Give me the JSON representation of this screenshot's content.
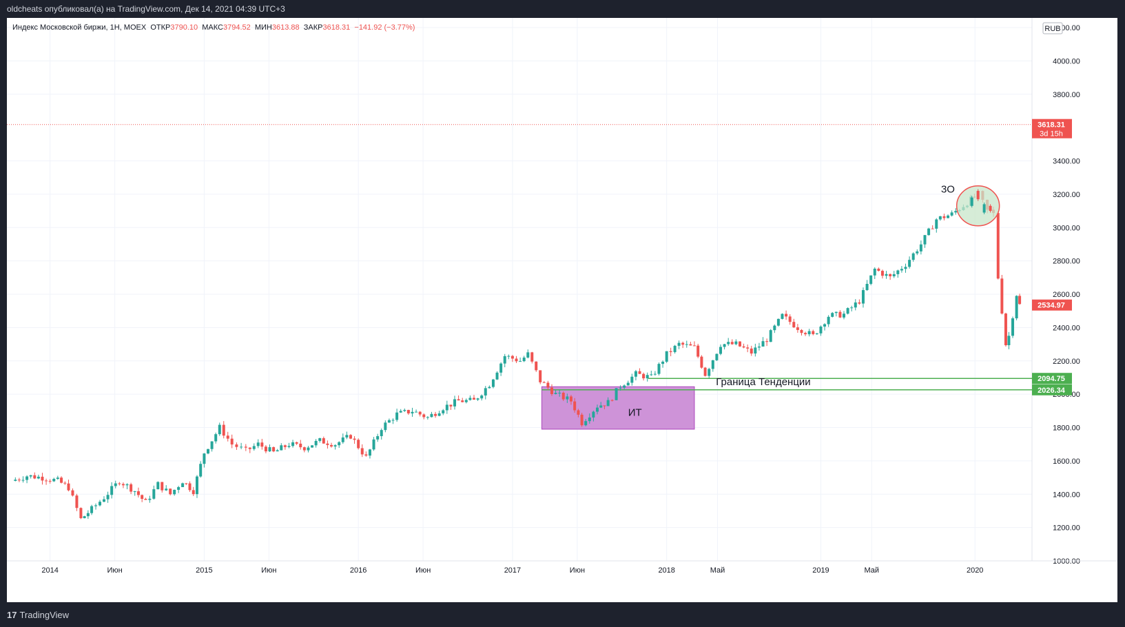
{
  "header": {
    "publisher_line": "oldcheats опубликовал(а) на TradingView.com, Дек 14, 2021 04:39 UTC+3"
  },
  "legend": {
    "symbol": "Индекс Московской биржи, 1Н, MOEX",
    "open_label": "ОТКР",
    "open_value": "3790.10",
    "high_label": "МАКС",
    "high_value": "3794.52",
    "low_label": "МИН",
    "low_value": "3613.88",
    "close_label": "ЗАКР",
    "close_value": "3618.31",
    "change_value": "−141.92 (−3.77%)"
  },
  "currency_badge": "RUB",
  "footer": {
    "logo_glyph": "17",
    "brand": "TradingView"
  },
  "colors": {
    "up": "#26a69a",
    "down": "#ef5350",
    "box_fill": "#ce93d8",
    "level_line": "#4caf50",
    "ellipse_fill": "#c8e6c9",
    "ellipse_stroke": "#ef5350",
    "price_dotted": "#ef5350"
  },
  "chart_data": {
    "type": "candlestick",
    "title": "Индекс Московской биржи, 1Н, MOEX",
    "ylim": [
      1000,
      4200
    ],
    "y_ticks": [
      1000,
      1200,
      1400,
      1600,
      1800,
      2000,
      2200,
      2400,
      2600,
      2800,
      3000,
      3200,
      3400,
      3800,
      4000,
      4200
    ],
    "y_tick_labels": [
      "1000.00",
      "1200.00",
      "1400.00",
      "1600.00",
      "1800.00",
      "2000.00",
      "2200.00",
      "2400.00",
      "2600.00",
      "2800.00",
      "3000.00",
      "3200.00",
      "3400.00",
      "3800.00",
      "4000.00",
      "4200.00"
    ],
    "x_ticks": [
      {
        "t": 2014.0,
        "label": "2014"
      },
      {
        "t": 2014.42,
        "label": "Июн"
      },
      {
        "t": 2015.0,
        "label": "2015"
      },
      {
        "t": 2015.42,
        "label": "Июн"
      },
      {
        "t": 2016.0,
        "label": "2016"
      },
      {
        "t": 2016.42,
        "label": "Июн"
      },
      {
        "t": 2017.0,
        "label": "2017"
      },
      {
        "t": 2017.42,
        "label": "Июн"
      },
      {
        "t": 2018.0,
        "label": "2018"
      },
      {
        "t": 2018.33,
        "label": "Май"
      },
      {
        "t": 2019.0,
        "label": "2019"
      },
      {
        "t": 2019.33,
        "label": "Май"
      },
      {
        "t": 2020.0,
        "label": "2020"
      }
    ],
    "series": [
      {
        "name": "MOEX",
        "points": [
          {
            "t": 2013.75,
            "c": 1480
          },
          {
            "t": 2013.85,
            "c": 1510
          },
          {
            "t": 2013.95,
            "c": 1500
          },
          {
            "t": 2014.05,
            "c": 1480
          },
          {
            "t": 2014.12,
            "c": 1440
          },
          {
            "t": 2014.2,
            "c": 1250
          },
          {
            "t": 2014.27,
            "c": 1310
          },
          {
            "t": 2014.35,
            "c": 1380
          },
          {
            "t": 2014.45,
            "c": 1480
          },
          {
            "t": 2014.55,
            "c": 1420
          },
          {
            "t": 2014.62,
            "c": 1350
          },
          {
            "t": 2014.7,
            "c": 1460
          },
          {
            "t": 2014.78,
            "c": 1400
          },
          {
            "t": 2014.86,
            "c": 1480
          },
          {
            "t": 2014.93,
            "c": 1420
          },
          {
            "t": 2015.0,
            "c": 1650
          },
          {
            "t": 2015.1,
            "c": 1800
          },
          {
            "t": 2015.18,
            "c": 1700
          },
          {
            "t": 2015.27,
            "c": 1660
          },
          {
            "t": 2015.35,
            "c": 1700
          },
          {
            "t": 2015.45,
            "c": 1650
          },
          {
            "t": 2015.55,
            "c": 1700
          },
          {
            "t": 2015.65,
            "c": 1680
          },
          {
            "t": 2015.75,
            "c": 1720
          },
          {
            "t": 2015.85,
            "c": 1700
          },
          {
            "t": 2015.95,
            "c": 1750
          },
          {
            "t": 2016.05,
            "c": 1620
          },
          {
            "t": 2016.15,
            "c": 1800
          },
          {
            "t": 2016.25,
            "c": 1880
          },
          {
            "t": 2016.35,
            "c": 1900
          },
          {
            "t": 2016.45,
            "c": 1860
          },
          {
            "t": 2016.55,
            "c": 1920
          },
          {
            "t": 2016.65,
            "c": 1960
          },
          {
            "t": 2016.75,
            "c": 1960
          },
          {
            "t": 2016.85,
            "c": 2060
          },
          {
            "t": 2016.95,
            "c": 2230
          },
          {
            "t": 2017.05,
            "c": 2200
          },
          {
            "t": 2017.1,
            "c": 2240
          },
          {
            "t": 2017.18,
            "c": 2080
          },
          {
            "t": 2017.28,
            "c": 2000
          },
          {
            "t": 2017.38,
            "c": 1960
          },
          {
            "t": 2017.45,
            "c": 1830
          },
          {
            "t": 2017.55,
            "c": 1930
          },
          {
            "t": 2017.62,
            "c": 1950
          },
          {
            "t": 2017.7,
            "c": 2050
          },
          {
            "t": 2017.8,
            "c": 2120
          },
          {
            "t": 2017.9,
            "c": 2100
          },
          {
            "t": 2018.0,
            "c": 2240
          },
          {
            "t": 2018.08,
            "c": 2300
          },
          {
            "t": 2018.18,
            "c": 2280
          },
          {
            "t": 2018.25,
            "c": 2120
          },
          {
            "t": 2018.35,
            "c": 2300
          },
          {
            "t": 2018.45,
            "c": 2300
          },
          {
            "t": 2018.55,
            "c": 2250
          },
          {
            "t": 2018.65,
            "c": 2330
          },
          {
            "t": 2018.75,
            "c": 2470
          },
          {
            "t": 2018.85,
            "c": 2400
          },
          {
            "t": 2018.95,
            "c": 2350
          },
          {
            "t": 2019.05,
            "c": 2470
          },
          {
            "t": 2019.15,
            "c": 2480
          },
          {
            "t": 2019.25,
            "c": 2560
          },
          {
            "t": 2019.35,
            "c": 2750
          },
          {
            "t": 2019.45,
            "c": 2700
          },
          {
            "t": 2019.55,
            "c": 2780
          },
          {
            "t": 2019.65,
            "c": 2900
          },
          {
            "t": 2019.75,
            "c": 3050
          },
          {
            "t": 2019.85,
            "c": 3080
          },
          {
            "t": 2019.95,
            "c": 3150
          },
          {
            "t": 2020.02,
            "c": 3200
          },
          {
            "t": 2020.08,
            "c": 3100
          },
          {
            "t": 2020.12,
            "c": 3080
          },
          {
            "t": 2020.15,
            "c": 2700
          },
          {
            "t": 2020.2,
            "c": 2300
          },
          {
            "t": 2020.22,
            "c": 2350
          },
          {
            "t": 2020.27,
            "c": 2600
          },
          {
            "t": 2020.29,
            "c": 2534.97
          }
        ]
      }
    ],
    "price_labels": [
      {
        "value": 3618.31,
        "text": "3618.31",
        "sub": "3d 15h",
        "color": "#ef5350"
      },
      {
        "value": 2534.97,
        "text": "2534.97",
        "color": "#ef5350"
      },
      {
        "value": 2094.75,
        "text": "2094.75",
        "color": "#4caf50"
      },
      {
        "value": 2026.34,
        "text": "2026.34",
        "color": "#4caf50"
      }
    ],
    "annotations": {
      "trend_boundary": "Граница Тенденции",
      "box_label": "ИТ",
      "ellipse_label": "3О"
    }
  }
}
